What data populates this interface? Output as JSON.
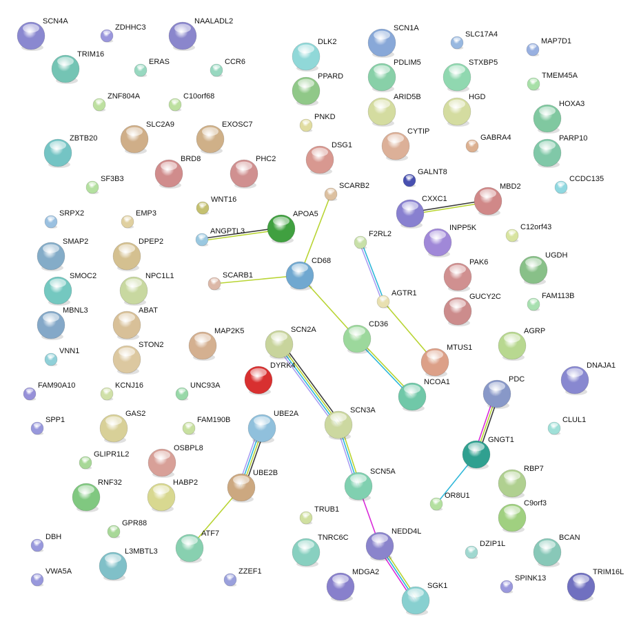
{
  "edge_colors": {
    "black": "#3a3a3a",
    "textmining": "#b8d432",
    "database": "#2eb7d9",
    "experiments": "#a99ef2",
    "coexpression": "#d92ad9"
  },
  "nodes": [
    {
      "name": "SCN4A",
      "size": "big",
      "color": "#8a88d0"
    },
    {
      "name": "ZDHHC3",
      "size": "small",
      "color": "#9a96dc"
    },
    {
      "name": "NAALADL2",
      "size": "big",
      "color": "#8a86cc"
    },
    {
      "name": "TRIM16",
      "size": "big",
      "color": "#74c4b4"
    },
    {
      "name": "ERAS",
      "size": "small",
      "color": "#98d8c0"
    },
    {
      "name": "CCR6",
      "size": "small",
      "color": "#98d8c0"
    },
    {
      "name": "ZNF804A",
      "size": "small",
      "color": "#bde0a0"
    },
    {
      "name": "C10orf68",
      "size": "small",
      "color": "#bde0a0"
    },
    {
      "name": "ZBTB20",
      "size": "big",
      "color": "#74c4c4"
    },
    {
      "name": "SLC2A9",
      "size": "big",
      "color": "#cfae88"
    },
    {
      "name": "EXOSC7",
      "size": "big",
      "color": "#cfb088"
    },
    {
      "name": "BRD8",
      "size": "big",
      "color": "#d08c8c"
    },
    {
      "name": "PHC2",
      "size": "big",
      "color": "#d09090"
    },
    {
      "name": "SF3B3",
      "size": "small",
      "color": "#b4e0a0"
    },
    {
      "name": "WNT16",
      "size": "small",
      "color": "#c4c070"
    },
    {
      "name": "SRPX2",
      "size": "small",
      "color": "#9ac0e0"
    },
    {
      "name": "EMP3",
      "size": "small",
      "color": "#e0d0a0"
    },
    {
      "name": "ANGPTL3",
      "size": "small",
      "color": "#9ac8e0"
    },
    {
      "name": "APOA5",
      "size": "big",
      "color": "#40a040"
    },
    {
      "name": "SMAP2",
      "size": "big",
      "color": "#84acc8"
    },
    {
      "name": "DPEP2",
      "size": "big",
      "color": "#d4c090"
    },
    {
      "name": "SMOC2",
      "size": "big",
      "color": "#74c8c0"
    },
    {
      "name": "NPC1L1",
      "size": "big",
      "color": "#c8d8a0"
    },
    {
      "name": "SCARB1",
      "size": "small",
      "color": "#dcb8a8"
    },
    {
      "name": "MBNL3",
      "size": "big",
      "color": "#84a8c8"
    },
    {
      "name": "ABAT",
      "size": "big",
      "color": "#d8c098"
    },
    {
      "name": "STON2",
      "size": "big",
      "color": "#dcc8a0"
    },
    {
      "name": "MAP2K5",
      "size": "big",
      "color": "#d4b090"
    },
    {
      "name": "VNN1",
      "size": "small",
      "color": "#90d0d8"
    },
    {
      "name": "FAM90A10",
      "size": "small",
      "color": "#9690d8"
    },
    {
      "name": "KCNJ16",
      "size": "small",
      "color": "#d0e0a8"
    },
    {
      "name": "UNC93A",
      "size": "small",
      "color": "#98d8a8"
    },
    {
      "name": "SPP1",
      "size": "small",
      "color": "#9898dc"
    },
    {
      "name": "GAS2",
      "size": "big",
      "color": "#d8d098"
    },
    {
      "name": "FAM190B",
      "size": "small",
      "color": "#c8e0a0"
    },
    {
      "name": "GLIPR1L2",
      "size": "small",
      "color": "#a8d898"
    },
    {
      "name": "OSBPL8",
      "size": "big",
      "color": "#d8a098"
    },
    {
      "name": "RNF32",
      "size": "big",
      "color": "#80c880"
    },
    {
      "name": "HABP2",
      "size": "big",
      "color": "#d8d890"
    },
    {
      "name": "GPR88",
      "size": "small",
      "color": "#a8d898"
    },
    {
      "name": "DBH",
      "size": "small",
      "color": "#9898dc"
    },
    {
      "name": "L3MBTL3",
      "size": "big",
      "color": "#80c0c8"
    },
    {
      "name": "VWA5A",
      "size": "small",
      "color": "#9898dc"
    },
    {
      "name": "ZZEF1",
      "size": "small",
      "color": "#9aa0dc"
    },
    {
      "name": "DLK2",
      "size": "big",
      "color": "#90d8d8"
    },
    {
      "name": "SCN1A",
      "size": "big",
      "color": "#88a8d8"
    },
    {
      "name": "SLC17A4",
      "size": "small",
      "color": "#98b8e0"
    },
    {
      "name": "MAP7D1",
      "size": "small",
      "color": "#98b0e0"
    },
    {
      "name": "PPARD",
      "size": "big",
      "color": "#90c888"
    },
    {
      "name": "PDLIM5",
      "size": "big",
      "color": "#88d0a8"
    },
    {
      "name": "STXBP5",
      "size": "big",
      "color": "#90d8b0"
    },
    {
      "name": "TMEM45A",
      "size": "small",
      "color": "#a8e0a8"
    },
    {
      "name": "PNKD",
      "size": "small",
      "color": "#e0dca0"
    },
    {
      "name": "ARID5B",
      "size": "big",
      "color": "#d4dca0"
    },
    {
      "name": "HGD",
      "size": "big",
      "color": "#d4dca0"
    },
    {
      "name": "HOXA3",
      "size": "big",
      "color": "#80c8a0"
    },
    {
      "name": "CYTIP",
      "size": "big",
      "color": "#dcb098"
    },
    {
      "name": "GABRA4",
      "size": "small",
      "color": "#dcb090"
    },
    {
      "name": "DSG1",
      "size": "big",
      "color": "#d89890"
    },
    {
      "name": "PARP10",
      "size": "big",
      "color": "#80c8a8"
    },
    {
      "name": "GALNT8",
      "size": "small",
      "color": "#4850b0"
    },
    {
      "name": "CCDC135",
      "size": "small",
      "color": "#90d8e0"
    },
    {
      "name": "SCARB2",
      "size": "small",
      "color": "#dcc0a0"
    },
    {
      "name": "MBD2",
      "size": "big",
      "color": "#d08888"
    },
    {
      "name": "CXXC1",
      "size": "big",
      "color": "#8880d0"
    },
    {
      "name": "C12orf43",
      "size": "small",
      "color": "#d8e4a0"
    },
    {
      "name": "F2RL2",
      "size": "small",
      "color": "#c8e0a8"
    },
    {
      "name": "INPP5K",
      "size": "big",
      "color": "#a088d8"
    },
    {
      "name": "CD68",
      "size": "big",
      "color": "#70a8d0"
    },
    {
      "name": "UGDH",
      "size": "big",
      "color": "#88c088"
    },
    {
      "name": "PAK6",
      "size": "big",
      "color": "#d09090"
    },
    {
      "name": "AGTR1",
      "size": "small",
      "color": "#e8e0b0"
    },
    {
      "name": "FAM113B",
      "size": "small",
      "color": "#a8e0b0"
    },
    {
      "name": "GUCY2C",
      "size": "big",
      "color": "#cc8c8c"
    },
    {
      "name": "CD36",
      "size": "big",
      "color": "#9cd89c"
    },
    {
      "name": "AGRP",
      "size": "big",
      "color": "#b8d890"
    },
    {
      "name": "MTUS1",
      "size": "big",
      "color": "#dca088"
    },
    {
      "name": "SCN2A",
      "size": "big",
      "color": "#c8d49c"
    },
    {
      "name": "DYRK4",
      "size": "big",
      "color": "#d83030"
    },
    {
      "name": "DNAJA1",
      "size": "big",
      "color": "#8888d0"
    },
    {
      "name": "NCOA1",
      "size": "big",
      "color": "#70c8a8"
    },
    {
      "name": "PDC",
      "size": "big",
      "color": "#8898c8"
    },
    {
      "name": "SCN3A",
      "size": "big",
      "color": "#ccd8a0"
    },
    {
      "name": "UBE2A",
      "size": "big",
      "color": "#90c0dc"
    },
    {
      "name": "CLUL1",
      "size": "small",
      "color": "#a0e0d8"
    },
    {
      "name": "GNGT1",
      "size": "big",
      "color": "#30a090"
    },
    {
      "name": "RBP7",
      "size": "big",
      "color": "#b0d090"
    },
    {
      "name": "UBE2B",
      "size": "big",
      "color": "#cca880"
    },
    {
      "name": "SCN5A",
      "size": "big",
      "color": "#80d0b0"
    },
    {
      "name": "OR8U1",
      "size": "small",
      "color": "#b4e0a0"
    },
    {
      "name": "TRUB1",
      "size": "small",
      "color": "#d0e0a0"
    },
    {
      "name": "C9orf3",
      "size": "big",
      "color": "#a0d080"
    },
    {
      "name": "ATF7",
      "size": "big",
      "color": "#88d0b0"
    },
    {
      "name": "TNRC6C",
      "size": "big",
      "color": "#88d0c0"
    },
    {
      "name": "NEDD4L",
      "size": "big",
      "color": "#8a84cc"
    },
    {
      "name": "DZIP1L",
      "size": "small",
      "color": "#a0d8d0"
    },
    {
      "name": "BCAN",
      "size": "big",
      "color": "#88c8b8"
    },
    {
      "name": "MDGA2",
      "size": "big",
      "color": "#8880cc"
    },
    {
      "name": "SGK1",
      "size": "big",
      "color": "#88d0d0"
    },
    {
      "name": "SPINK13",
      "size": "small",
      "color": "#9a98dc"
    },
    {
      "name": "TRIM16L",
      "size": "big",
      "color": "#7070c0"
    }
  ],
  "edges": [
    {
      "from": "ANGPTL3",
      "to": "APOA5",
      "types": [
        "black",
        "textmining"
      ]
    },
    {
      "from": "SCARB2",
      "to": "CD68",
      "types": [
        "textmining"
      ]
    },
    {
      "from": "SCARB1",
      "to": "CD68",
      "types": [
        "textmining"
      ]
    },
    {
      "from": "CD68",
      "to": "CD36",
      "types": [
        "textmining"
      ]
    },
    {
      "from": "CD36",
      "to": "NCOA1",
      "types": [
        "textmining",
        "database"
      ]
    },
    {
      "from": "F2RL2",
      "to": "AGTR1",
      "types": [
        "database",
        "experiments"
      ]
    },
    {
      "from": "AGTR1",
      "to": "MTUS1",
      "types": [
        "textmining"
      ]
    },
    {
      "from": "CXXC1",
      "to": "MBD2",
      "types": [
        "black",
        "textmining"
      ]
    },
    {
      "from": "SCN2A",
      "to": "SCN3A",
      "types": [
        "black",
        "textmining",
        "database",
        "experiments"
      ]
    },
    {
      "from": "SCN3A",
      "to": "SCN5A",
      "types": [
        "textmining",
        "database",
        "experiments"
      ]
    },
    {
      "from": "UBE2A",
      "to": "UBE2B",
      "types": [
        "black",
        "textmining",
        "database",
        "experiments"
      ]
    },
    {
      "from": "UBE2B",
      "to": "ATF7",
      "types": [
        "textmining"
      ]
    },
    {
      "from": "SCN5A",
      "to": "NEDD4L",
      "types": [
        "coexpression"
      ]
    },
    {
      "from": "NEDD4L",
      "to": "SGK1",
      "types": [
        "textmining",
        "database",
        "coexpression"
      ]
    },
    {
      "from": "PDC",
      "to": "GNGT1",
      "types": [
        "black",
        "textmining",
        "coexpression"
      ]
    },
    {
      "from": "GNGT1",
      "to": "OR8U1",
      "types": [
        "database"
      ]
    }
  ]
}
